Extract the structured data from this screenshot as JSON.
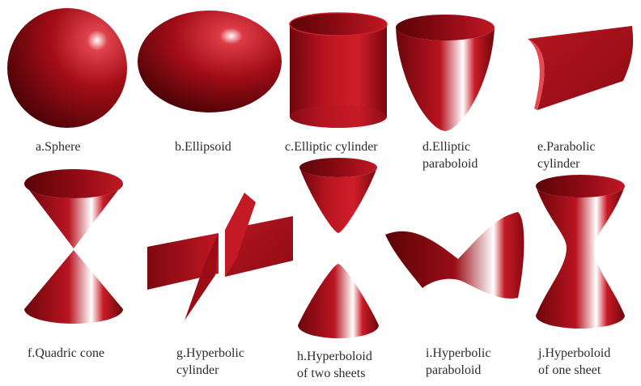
{
  "figure": {
    "shapes": [
      {
        "id": "sphere",
        "caption": [
          "a.Sphere"
        ]
      },
      {
        "id": "ellipsoid",
        "caption": [
          "b.Ellipsoid"
        ]
      },
      {
        "id": "elliptic-cylinder",
        "caption": [
          "c.Elliptic cylinder"
        ]
      },
      {
        "id": "elliptic-paraboloid",
        "caption": [
          "d.Elliptic",
          "paraboloid"
        ]
      },
      {
        "id": "parabolic-cylinder",
        "caption": [
          "e.Parabolic",
          "cylinder"
        ]
      },
      {
        "id": "quadric-cone",
        "caption": [
          "f.Quadric cone"
        ]
      },
      {
        "id": "hyperbolic-cylinder",
        "caption": [
          "g.Hyperbolic",
          "cylinder"
        ]
      },
      {
        "id": "hyperboloid-two-sheets",
        "caption": [
          "h.Hyperboloid",
          "of two sheets"
        ]
      },
      {
        "id": "hyperbolic-paraboloid",
        "caption": [
          "i.Hyperbolic",
          "paraboloid"
        ]
      },
      {
        "id": "hyperboloid-one-sheet",
        "caption": [
          "j.Hyperboloid",
          "of one sheet"
        ]
      }
    ],
    "colors": {
      "surface_dark": "#5e0509",
      "surface_mid": "#a30d17",
      "surface_light": "#d21c28",
      "highlight": "#ffffff"
    }
  }
}
